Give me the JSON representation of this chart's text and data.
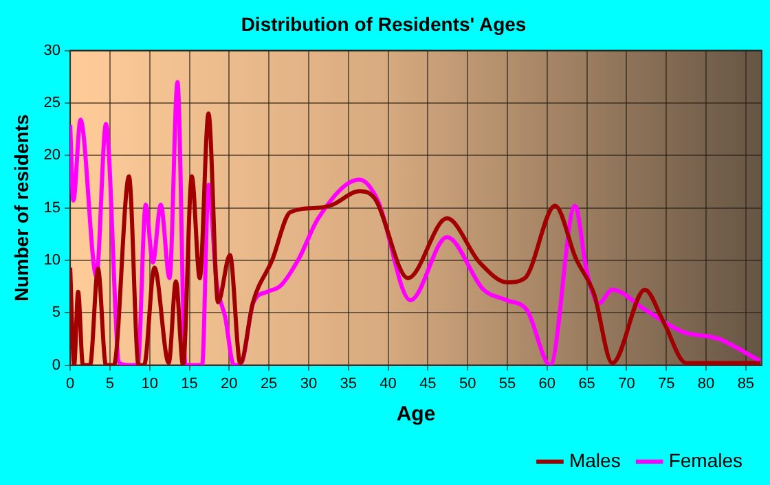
{
  "chart_data": {
    "type": "line",
    "title": "Distribution of Residents' Ages",
    "xlabel": "Age",
    "ylabel": "Number of residents",
    "xlim": [
      0,
      87
    ],
    "xticks": [
      0,
      5,
      10,
      15,
      20,
      25,
      30,
      35,
      40,
      45,
      50,
      55,
      60,
      65,
      70,
      75,
      80,
      85
    ],
    "ylim": [
      0,
      30
    ],
    "yticks": [
      0,
      5,
      10,
      15,
      20,
      25,
      30
    ],
    "grid": true,
    "legend": "bottom right",
    "marker": "none",
    "line_style": "solid",
    "series": [
      {
        "name": "Males",
        "color": "#a00000",
        "x": [
          0,
          0.5,
          1,
          1.6,
          2.5,
          3.5,
          4.5,
          5.5,
          7.4,
          8.6,
          9.3,
          10.6,
          12.4,
          13.3,
          14.2,
          15.3,
          16.3,
          17.4,
          18.6,
          20.1,
          21.4,
          23,
          25.4,
          27.7,
          31.2,
          33,
          36.4,
          38.4,
          42.5,
          47.4,
          51.5,
          55,
          57.2,
          61,
          63.6,
          65.9,
          68.2,
          72.3,
          74.6,
          77.5,
          81.6,
          86.8
        ],
        "values": [
          9.3,
          0,
          7,
          0,
          0,
          9.2,
          0,
          0,
          18,
          0,
          0,
          9.3,
          0.2,
          8,
          0,
          18,
          8.3,
          24,
          6,
          10.5,
          0.2,
          6,
          10,
          14.6,
          15,
          15.3,
          16.6,
          15.8,
          8.3,
          14,
          9.8,
          7.9,
          8.3,
          15.2,
          10.2,
          6.8,
          0.2,
          7.2,
          4.2,
          0.2,
          0.2,
          0.2
        ]
      },
      {
        "name": "Females",
        "color": "#ff00ff",
        "x": [
          0,
          0.4,
          1.3,
          3.3,
          4.5,
          6.2,
          7.6,
          8.5,
          9.5,
          10.4,
          11.4,
          12.5,
          13.5,
          14.5,
          16.6,
          17.4,
          18.4,
          19.5,
          20.6,
          21.6,
          23,
          24.8,
          26.5,
          28.8,
          31.2,
          36.4,
          38.7,
          42.8,
          47.4,
          52,
          54.9,
          57.5,
          60.4,
          63.5,
          65,
          66.5,
          68.2,
          72.3,
          77,
          81.6,
          86.8
        ],
        "values": [
          22.9,
          15.7,
          23.4,
          8.5,
          23,
          0.2,
          0,
          0,
          15.3,
          9.8,
          15.3,
          8.3,
          27,
          0,
          0,
          17.2,
          8,
          4.6,
          0,
          0.3,
          5.9,
          7,
          7.6,
          10.2,
          14,
          17.7,
          15.7,
          6.2,
          12.2,
          7.2,
          6.2,
          5.2,
          0,
          15.2,
          8.9,
          5.9,
          7.2,
          5.3,
          3.2,
          2.5,
          0.4
        ]
      }
    ]
  }
}
